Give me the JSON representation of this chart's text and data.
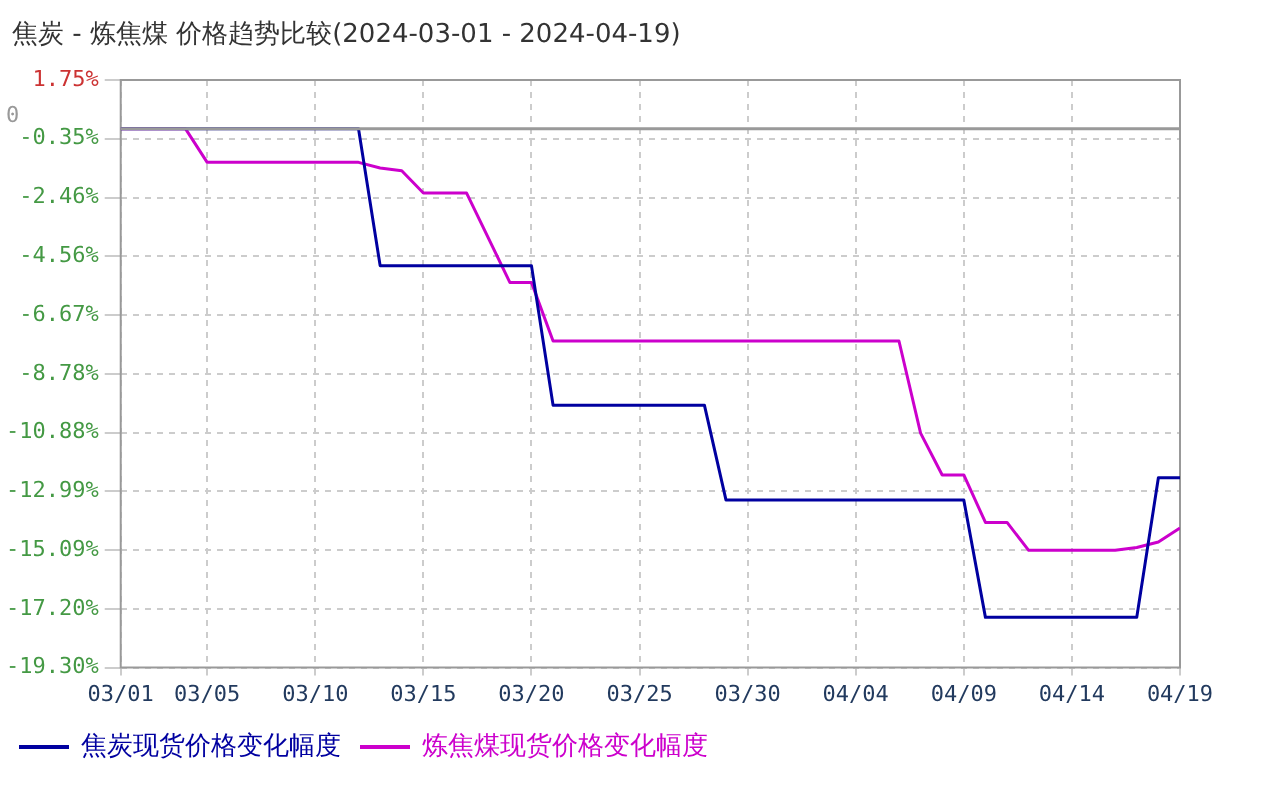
{
  "chart_data": {
    "type": "line",
    "title": "焦炭 - 炼焦煤 价格趋势比较(2024-03-01 - 2024-04-19)",
    "xlim": [
      "2024-03-01",
      "2024-04-19"
    ],
    "xticks": [
      {
        "value": "2024-03-01",
        "label": "03/01"
      },
      {
        "value": "2024-03-05",
        "label": "03/05"
      },
      {
        "value": "2024-03-10",
        "label": "03/10"
      },
      {
        "value": "2024-03-15",
        "label": "03/15"
      },
      {
        "value": "2024-03-20",
        "label": "03/20"
      },
      {
        "value": "2024-03-25",
        "label": "03/25"
      },
      {
        "value": "2024-03-30",
        "label": "03/30"
      },
      {
        "value": "2024-04-04",
        "label": "04/04"
      },
      {
        "value": "2024-04-09",
        "label": "04/09"
      },
      {
        "value": "2024-04-14",
        "label": "04/14"
      },
      {
        "value": "2024-04-19",
        "label": "04/19"
      }
    ],
    "ylim": [
      -19.3,
      1.75
    ],
    "yticks": [
      {
        "value": 1.75,
        "label": "1.75%"
      },
      {
        "value": -0.35,
        "label": "-0.35%"
      },
      {
        "value": -2.46,
        "label": "-2.46%"
      },
      {
        "value": -4.56,
        "label": "-4.56%"
      },
      {
        "value": -6.67,
        "label": "-6.67%"
      },
      {
        "value": -8.78,
        "label": "-8.78%"
      },
      {
        "value": -10.88,
        "label": "-10.88%"
      },
      {
        "value": -12.99,
        "label": "-12.99%"
      },
      {
        "value": -15.09,
        "label": "-15.09%"
      },
      {
        "value": -17.2,
        "label": "-17.20%"
      },
      {
        "value": -19.3,
        "label": "-19.30%"
      }
    ],
    "ref_lines": [
      {
        "axis": "y",
        "value": 0,
        "label": "0",
        "color": "#999999"
      }
    ],
    "grid": true,
    "legend": "bottom",
    "marker": "none",
    "line_style": "solid",
    "series": [
      {
        "name": "焦炭现货价格变化幅度",
        "color": "#0000a0",
        "x": [
          "2024-03-01",
          "2024-03-12",
          "2024-03-13",
          "2024-03-20",
          "2024-03-21",
          "2024-03-28",
          "2024-03-29",
          "2024-04-09",
          "2024-04-10",
          "2024-04-17",
          "2024-04-18",
          "2024-04-19"
        ],
        "values": [
          0,
          0,
          -4.9,
          -4.9,
          -9.9,
          -9.9,
          -13.3,
          -13.3,
          -17.5,
          -17.5,
          -12.5,
          -12.5
        ]
      },
      {
        "name": "炼焦煤现货价格变化幅度",
        "color": "#cc00cc",
        "x": [
          "2024-03-01",
          "2024-03-04",
          "2024-03-05",
          "2024-03-12",
          "2024-03-13",
          "2024-03-14",
          "2024-03-15",
          "2024-03-17",
          "2024-03-19",
          "2024-03-20",
          "2024-03-21",
          "2024-04-06",
          "2024-04-07",
          "2024-04-08",
          "2024-04-09",
          "2024-04-10",
          "2024-04-11",
          "2024-04-12",
          "2024-04-16",
          "2024-04-17",
          "2024-04-18",
          "2024-04-19"
        ],
        "values": [
          0,
          0,
          -1.2,
          -1.2,
          -1.4,
          -1.5,
          -2.3,
          -2.3,
          -5.5,
          -5.5,
          -7.6,
          -7.6,
          -10.9,
          -12.4,
          -12.4,
          -14.1,
          -14.1,
          -15.1,
          -15.1,
          -15.0,
          -14.8,
          -14.3
        ]
      }
    ]
  }
}
